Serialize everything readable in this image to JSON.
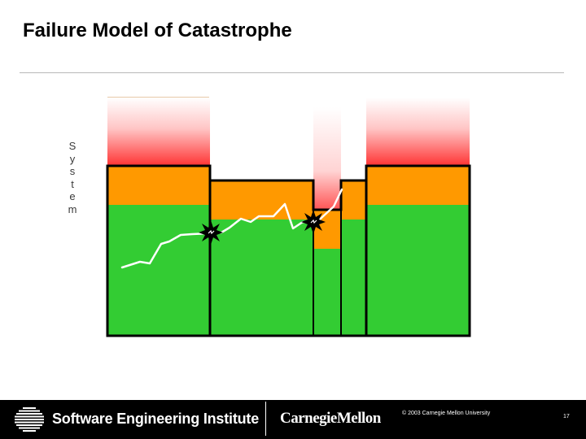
{
  "slide": {
    "title": "Failure Model of Catastrophe",
    "axis_label": "S\ny\ns\nt\ne\nm"
  },
  "diagram": {
    "colors": {
      "safe": "#33cc33",
      "warning": "#ff9900",
      "danger": "#ff3333",
      "trajectory": "#ffffff",
      "outline": "#000000"
    },
    "icons": [
      "failure-burst-icon",
      "failure-burst-icon"
    ]
  },
  "footer": {
    "sei_name": "Software Engineering Institute",
    "cmu_name": "CarnegieMellon",
    "copyright": "© 2003 Carnegie Mellon University",
    "page_number": "17"
  }
}
